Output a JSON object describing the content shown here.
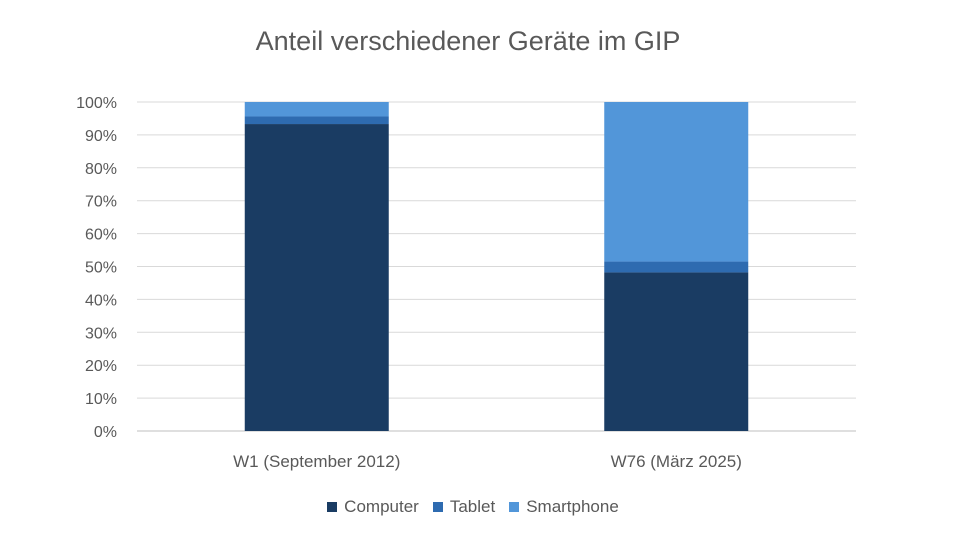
{
  "chart_data": {
    "type": "bar",
    "stacked": true,
    "title": "Anteil verschiedener Geräte im GIP",
    "categories": [
      "W1 (September 2012)",
      "W76 (März 2025)"
    ],
    "series": [
      {
        "name": "Computer",
        "values": [
          93.3,
          48.2
        ],
        "color": "#1a3c63"
      },
      {
        "name": "Tablet",
        "values": [
          2.3,
          3.3
        ],
        "color": "#2e6bb0"
      },
      {
        "name": "Smartphone",
        "values": [
          4.4,
          48.5
        ],
        "color": "#5296d9"
      }
    ],
    "ylim": [
      0,
      100
    ],
    "yticks": [
      "0%",
      "10%",
      "20%",
      "30%",
      "40%",
      "50%",
      "60%",
      "70%",
      "80%",
      "90%",
      "100%"
    ],
    "grid": true,
    "legend": "bottom"
  }
}
